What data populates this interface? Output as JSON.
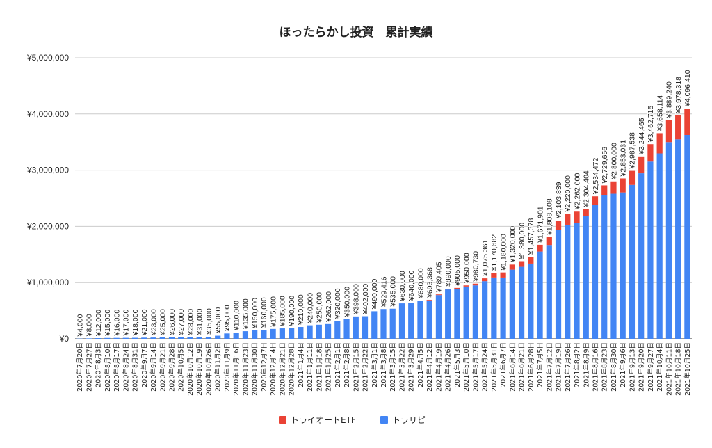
{
  "chart_data": {
    "type": "bar",
    "stacked": true,
    "title": "ほったらかし投資　累計実績",
    "xlabel": "",
    "ylabel": "",
    "ylim": [
      0,
      5000000
    ],
    "yticks": [
      "¥0",
      "¥1,000,000",
      "¥2,000,000",
      "¥3,000,000",
      "¥4,000,000",
      "¥5,000,000"
    ],
    "grid": true,
    "legend_position": "bottom",
    "categories": [
      "2020年7月20日",
      "2020年7月27日",
      "2020年8月3日",
      "2020年8月10日",
      "2020年8月17日",
      "2020年8月24日",
      "2020年8月31日",
      "2020年9月7日",
      "2020年9月14日",
      "2020年9月21日",
      "2020年9月28日",
      "2020年10月5日",
      "2020年10月12日",
      "2020年10月19日",
      "2020年10月26日",
      "2020年11月2日",
      "2020年11月9日",
      "2020年11月16日",
      "2020年11月23日",
      "2020年11月30日",
      "2020年12月7日",
      "2020年12月14日",
      "2020年12月21日",
      "2020年12月28日",
      "2021年1月4日",
      "2021年1月11日",
      "2021年1月18日",
      "2021年1月25日",
      "2021年2月1日",
      "2021年2月8日",
      "2021年2月15日",
      "2021年2月22日",
      "2021年3月1日",
      "2021年3月8日",
      "2021年3月15日",
      "2021年3月22日",
      "2021年3月29日",
      "2021年4月5日",
      "2021年4月12日",
      "2021年4月19日",
      "2021年4月26日",
      "2021年5月3日",
      "2021年5月10日",
      "2021年5月17日",
      "2021年5月24日",
      "2021年5月31日",
      "2021年6月7日",
      "2021年6月14日",
      "2021年6月21日",
      "2021年6月28日",
      "2021年7月5日",
      "2021年7月12日",
      "2021年7月19日",
      "2021年7月26日",
      "2021年8月2日",
      "2021年8月9日",
      "2021年8月16日",
      "2021年8月23日",
      "2021年8月30日",
      "2021年9月6日",
      "2021年9月13日",
      "2021年9月20日",
      "2021年9月27日",
      "2021年10月4日",
      "2021年10月11日",
      "2021年10月18日",
      "2021年10月25日"
    ],
    "series": [
      {
        "name": "トラリピ",
        "color": "#4285f4",
        "values": [
          4000,
          8000,
          12000,
          15000,
          16000,
          17000,
          18000,
          21000,
          23000,
          25000,
          26000,
          27000,
          28000,
          31000,
          35000,
          55000,
          95000,
          110000,
          135000,
          150000,
          160000,
          175000,
          185000,
          190000,
          210000,
          240000,
          250000,
          262000,
          320000,
          350000,
          398000,
          402000,
          490000,
          529416,
          535000,
          630000,
          640000,
          672000,
          683368,
          777405,
          878000,
          890000,
          930000,
          950730,
          1025361,
          1090682,
          1090000,
          1230000,
          1280000,
          1337378,
          1551901,
          1668108,
          1933839,
          2030000,
          2062000,
          2184404,
          2384472,
          2549656,
          2580000,
          2603031,
          2737538,
          2944465,
          3152715,
          3298114,
          3499240,
          3548318,
          3626410
        ]
      },
      {
        "name": "トライオートETF",
        "color": "#ea4335",
        "values": [
          0,
          0,
          0,
          0,
          0,
          0,
          0,
          0,
          0,
          0,
          0,
          0,
          0,
          0,
          0,
          0,
          0,
          0,
          0,
          0,
          0,
          0,
          0,
          0,
          0,
          0,
          0,
          0,
          0,
          0,
          0,
          0,
          0,
          0,
          0,
          0,
          0,
          8000,
          10000,
          12000,
          12000,
          15000,
          20000,
          30000,
          50000,
          80000,
          90000,
          90000,
          100000,
          120000,
          120000,
          140000,
          170000,
          190000,
          200000,
          120000,
          150000,
          180000,
          220000,
          250000,
          250000,
          300000,
          310000,
          360000,
          390000,
          430000,
          470000
        ]
      }
    ],
    "legend": [
      "トライオートETF",
      "トラリピ"
    ]
  }
}
